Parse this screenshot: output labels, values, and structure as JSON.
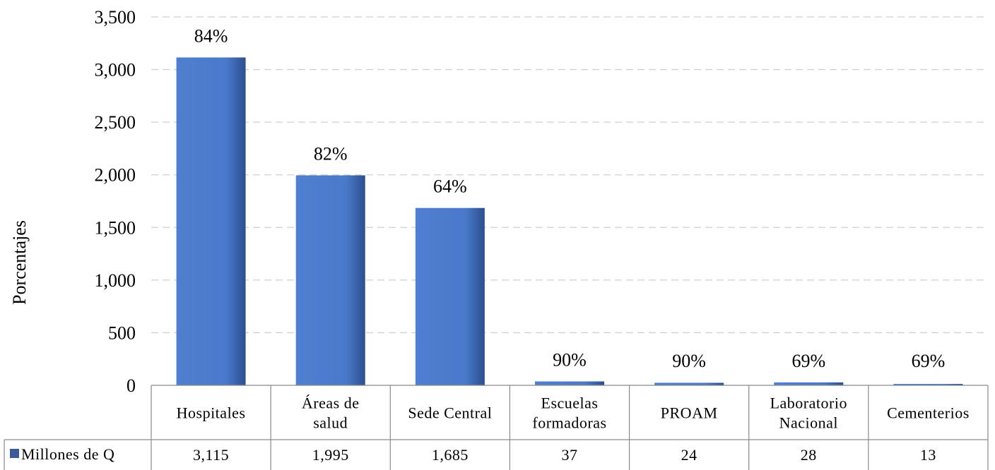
{
  "chart_data": {
    "type": "bar",
    "ylabel": "Porcentajes",
    "ylim": [
      0,
      3500
    ],
    "yticks": [
      0,
      500,
      1000,
      1500,
      2000,
      2500,
      3000,
      3500
    ],
    "ytick_labels": [
      "0",
      "500",
      "1,000",
      "1,500",
      "2,000",
      "2,500",
      "3,000",
      "3,500"
    ],
    "grid": true,
    "categories": [
      [
        "Hospitales"
      ],
      [
        "Áreas de",
        "salud"
      ],
      [
        "Sede Central"
      ],
      [
        "Escuelas",
        "formadoras"
      ],
      [
        "PROAM"
      ],
      [
        "Laboratorio",
        "Nacional"
      ],
      [
        "Cementerios"
      ]
    ],
    "series": [
      {
        "name": "Millones de Q",
        "values": [
          3115,
          1995,
          1685,
          37,
          24,
          28,
          13
        ],
        "value_labels": [
          "3,115",
          "1,995",
          "1,685",
          "37",
          "24",
          "28",
          "13"
        ],
        "color": "#4472c4"
      }
    ],
    "data_labels": [
      "84%",
      "82%",
      "64%",
      "90%",
      "90%",
      "69%",
      "69%"
    ],
    "data_table": true,
    "legend_key_color": "#3a5a9a"
  }
}
